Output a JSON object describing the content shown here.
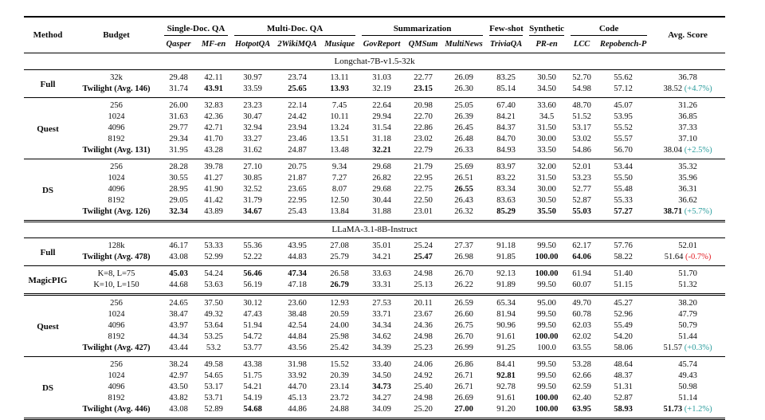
{
  "table": {
    "header": {
      "method": "Method",
      "budget": "Budget",
      "avg_score": "Avg. Score",
      "groups": [
        {
          "label": "Single-Doc. QA",
          "cols": [
            "Qasper",
            "MF-en"
          ]
        },
        {
          "label": "Multi-Doc. QA",
          "cols": [
            "HotpotQA",
            "2WikiMQA",
            "Musique"
          ]
        },
        {
          "label": "Summarization",
          "cols": [
            "GovReport",
            "QMSum",
            "MultiNews"
          ]
        },
        {
          "label": "Few-shot",
          "cols": [
            "TriviaQA"
          ]
        },
        {
          "label": "Synthetic",
          "cols": [
            "PR-en"
          ]
        },
        {
          "label": "Code",
          "cols": [
            "LCC",
            "Repobench-P"
          ]
        }
      ]
    },
    "colors": {
      "positive_delta": "#2b9d9d",
      "negative_delta": "#e31b23"
    },
    "sections": [
      {
        "title": "Longchat-7B-v1.5-32k",
        "groups": [
          {
            "method": "Full",
            "rows": [
              {
                "budget": "32k",
                "values": [
                  "29.48",
                  "42.11",
                  "30.97",
                  "23.74",
                  "13.11",
                  "31.03",
                  "22.77",
                  "26.09",
                  "83.25",
                  "30.50",
                  "52.70",
                  "55.62"
                ],
                "avg": "36.78",
                "delta": "",
                "delta_type": ""
              },
              {
                "budget": "Twilight (Avg. 146)",
                "budget_bold": true,
                "values": [
                  "31.74",
                  "43.91",
                  "33.59",
                  "25.65",
                  "13.93",
                  "32.19",
                  "23.15",
                  "26.30",
                  "85.14",
                  "34.50",
                  "54.98",
                  "57.12"
                ],
                "bold": [
                  1,
                  3,
                  4,
                  6
                ],
                "avg": "38.52",
                "delta": "(+4.7%)",
                "delta_type": "pos"
              }
            ]
          },
          {
            "method": "Quest",
            "rows": [
              {
                "budget": "256",
                "values": [
                  "26.00",
                  "32.83",
                  "23.23",
                  "22.14",
                  "7.45",
                  "22.64",
                  "20.98",
                  "25.05",
                  "67.40",
                  "33.60",
                  "48.70",
                  "45.07"
                ],
                "avg": "31.26",
                "delta": "",
                "delta_type": ""
              },
              {
                "budget": "1024",
                "values": [
                  "31.63",
                  "42.36",
                  "30.47",
                  "24.42",
                  "10.11",
                  "29.94",
                  "22.70",
                  "26.39",
                  "84.21",
                  "34.5",
                  "51.52",
                  "53.95"
                ],
                "avg": "36.85",
                "delta": "",
                "delta_type": ""
              },
              {
                "budget": "4096",
                "values": [
                  "29.77",
                  "42.71",
                  "32.94",
                  "23.94",
                  "13.24",
                  "31.54",
                  "22.86",
                  "26.45",
                  "84.37",
                  "31.50",
                  "53.17",
                  "55.52"
                ],
                "avg": "37.33",
                "delta": "",
                "delta_type": ""
              },
              {
                "budget": "8192",
                "values": [
                  "29.34",
                  "41.70",
                  "33.27",
                  "23.46",
                  "13.51",
                  "31.18",
                  "23.02",
                  "26.48",
                  "84.70",
                  "30.00",
                  "53.02",
                  "55.57"
                ],
                "avg": "37.10",
                "delta": "",
                "delta_type": ""
              },
              {
                "budget": "Twilight (Avg. 131)",
                "budget_bold": true,
                "values": [
                  "31.95",
                  "43.28",
                  "31.62",
                  "24.87",
                  "13.48",
                  "32.21",
                  "22.79",
                  "26.33",
                  "84.93",
                  "33.50",
                  "54.86",
                  "56.70"
                ],
                "bold": [
                  5
                ],
                "avg": "38.04",
                "delta": "(+2.5%)",
                "delta_type": "pos"
              }
            ]
          },
          {
            "method": "DS",
            "rows": [
              {
                "budget": "256",
                "values": [
                  "28.28",
                  "39.78",
                  "27.10",
                  "20.75",
                  "9.34",
                  "29.68",
                  "21.79",
                  "25.69",
                  "83.97",
                  "32.00",
                  "52.01",
                  "53.44"
                ],
                "avg": "35.32",
                "delta": "",
                "delta_type": ""
              },
              {
                "budget": "1024",
                "values": [
                  "30.55",
                  "41.27",
                  "30.85",
                  "21.87",
                  "7.27",
                  "26.82",
                  "22.95",
                  "26.51",
                  "83.22",
                  "31.50",
                  "53.23",
                  "55.50"
                ],
                "avg": "35.96",
                "delta": "",
                "delta_type": ""
              },
              {
                "budget": "4096",
                "values": [
                  "28.95",
                  "41.90",
                  "32.52",
                  "23.65",
                  "8.07",
                  "29.68",
                  "22.75",
                  "26.55",
                  "83.34",
                  "30.00",
                  "52.77",
                  "55.48"
                ],
                "bold": [
                  7
                ],
                "avg": "36.31",
                "delta": "",
                "delta_type": ""
              },
              {
                "budget": "8192",
                "values": [
                  "29.05",
                  "41.42",
                  "31.79",
                  "22.95",
                  "12.50",
                  "30.44",
                  "22.50",
                  "26.43",
                  "83.63",
                  "30.50",
                  "52.87",
                  "55.33"
                ],
                "avg": "36.62",
                "delta": "",
                "delta_type": ""
              },
              {
                "budget": "Twilight (Avg. 126)",
                "budget_bold": true,
                "values": [
                  "32.34",
                  "43.89",
                  "34.67",
                  "25.43",
                  "13.84",
                  "31.88",
                  "23.01",
                  "26.32",
                  "85.29",
                  "35.50",
                  "55.03",
                  "57.27"
                ],
                "bold": [
                  0,
                  2,
                  8,
                  9,
                  10,
                  11
                ],
                "avg": "38.71",
                "avg_bold": true,
                "delta": "(+5.7%)",
                "delta_type": "pos"
              }
            ]
          }
        ]
      },
      {
        "title": "LLaMA-3.1-8B-Instruct",
        "rule_above": "double",
        "groups": [
          {
            "method": "Full",
            "rows": [
              {
                "budget": "128k",
                "values": [
                  "46.17",
                  "53.33",
                  "55.36",
                  "43.95",
                  "27.08",
                  "35.01",
                  "25.24",
                  "27.37",
                  "91.18",
                  "99.50",
                  "62.17",
                  "57.76"
                ],
                "avg": "52.01",
                "delta": "",
                "delta_type": ""
              },
              {
                "budget": "Twilight (Avg. 478)",
                "budget_bold": true,
                "values": [
                  "43.08",
                  "52.99",
                  "52.22",
                  "44.83",
                  "25.79",
                  "34.21",
                  "25.47",
                  "26.98",
                  "91.85",
                  "100.00",
                  "64.06",
                  "58.22"
                ],
                "bold": [
                  6,
                  9,
                  10
                ],
                "avg": "51.64",
                "delta": "(-0.7%)",
                "delta_type": "neg"
              }
            ]
          },
          {
            "method": "MagicPIG",
            "rows": [
              {
                "budget": "K=8, L=75",
                "values": [
                  "45.03",
                  "54.24",
                  "56.46",
                  "47.34",
                  "26.58",
                  "33.63",
                  "24.98",
                  "26.70",
                  "92.13",
                  "100.00",
                  "61.94",
                  "51.40"
                ],
                "bold": [
                  0,
                  2,
                  3,
                  9
                ],
                "avg": "51.70",
                "delta": "",
                "delta_type": ""
              },
              {
                "budget": "K=10, L=150",
                "values": [
                  "44.68",
                  "53.63",
                  "56.19",
                  "47.18",
                  "26.79",
                  "33.31",
                  "25.13",
                  "26.22",
                  "91.89",
                  "99.50",
                  "60.07",
                  "51.15"
                ],
                "bold": [
                  4
                ],
                "avg": "51.32",
                "delta": "",
                "delta_type": ""
              }
            ]
          },
          {
            "method": "Quest",
            "rule_above": "double",
            "rows": [
              {
                "budget": "256",
                "values": [
                  "24.65",
                  "37.50",
                  "30.12",
                  "23.60",
                  "12.93",
                  "27.53",
                  "20.11",
                  "26.59",
                  "65.34",
                  "95.00",
                  "49.70",
                  "45.27"
                ],
                "avg": "38.20",
                "delta": "",
                "delta_type": ""
              },
              {
                "budget": "1024",
                "values": [
                  "38.47",
                  "49.32",
                  "47.43",
                  "38.48",
                  "20.59",
                  "33.71",
                  "23.67",
                  "26.60",
                  "81.94",
                  "99.50",
                  "60.78",
                  "52.96"
                ],
                "avg": "47.79",
                "delta": "",
                "delta_type": ""
              },
              {
                "budget": "4096",
                "values": [
                  "43.97",
                  "53.64",
                  "51.94",
                  "42.54",
                  "24.00",
                  "34.34",
                  "24.36",
                  "26.75",
                  "90.96",
                  "99.50",
                  "62.03",
                  "55.49"
                ],
                "avg": "50.79",
                "delta": "",
                "delta_type": ""
              },
              {
                "budget": "8192",
                "values": [
                  "44.34",
                  "53.25",
                  "54.72",
                  "44.84",
                  "25.98",
                  "34.62",
                  "24.98",
                  "26.70",
                  "91.61",
                  "100.00",
                  "62.02",
                  "54.20"
                ],
                "bold": [
                  9
                ],
                "avg": "51.44",
                "delta": "",
                "delta_type": ""
              },
              {
                "budget": "Twilight (Avg. 427)",
                "budget_bold": true,
                "values": [
                  "43.44",
                  "53.2",
                  "53.77",
                  "43.56",
                  "25.42",
                  "34.39",
                  "25.23",
                  "26.99",
                  "91.25",
                  "100.0",
                  "63.55",
                  "58.06"
                ],
                "avg": "51.57",
                "delta": "(+0.3%)",
                "delta_type": "pos"
              }
            ]
          },
          {
            "method": "DS",
            "rows": [
              {
                "budget": "256",
                "values": [
                  "38.24",
                  "49.58",
                  "43.38",
                  "31.98",
                  "15.52",
                  "33.40",
                  "24.06",
                  "26.86",
                  "84.41",
                  "99.50",
                  "53.28",
                  "48.64"
                ],
                "avg": "45.74",
                "delta": "",
                "delta_type": ""
              },
              {
                "budget": "1024",
                "values": [
                  "42.97",
                  "54.65",
                  "51.75",
                  "33.92",
                  "20.39",
                  "34.50",
                  "24.92",
                  "26.71",
                  "92.81",
                  "99.50",
                  "62.66",
                  "48.37"
                ],
                "bold": [
                  8
                ],
                "avg": "49.43",
                "delta": "",
                "delta_type": ""
              },
              {
                "budget": "4096",
                "values": [
                  "43.50",
                  "53.17",
                  "54.21",
                  "44.70",
                  "23.14",
                  "34.73",
                  "25.40",
                  "26.71",
                  "92.78",
                  "99.50",
                  "62.59",
                  "51.31"
                ],
                "bold": [
                  5
                ],
                "avg": "50.98",
                "delta": "",
                "delta_type": ""
              },
              {
                "budget": "8192",
                "values": [
                  "43.82",
                  "53.71",
                  "54.19",
                  "45.13",
                  "23.72",
                  "34.27",
                  "24.98",
                  "26.69",
                  "91.61",
                  "100.00",
                  "62.40",
                  "52.87"
                ],
                "bold": [
                  9
                ],
                "avg": "51.14",
                "delta": "",
                "delta_type": ""
              },
              {
                "budget": "Twilight (Avg. 446)",
                "budget_bold": true,
                "values": [
                  "43.08",
                  "52.89",
                  "54.68",
                  "44.86",
                  "24.88",
                  "34.09",
                  "25.20",
                  "27.00",
                  "91.20",
                  "100.00",
                  "63.95",
                  "58.93"
                ],
                "bold": [
                  2,
                  7,
                  9,
                  10,
                  11
                ],
                "avg": "51.73",
                "avg_bold": true,
                "delta": "(+1.2%)",
                "delta_type": "pos"
              }
            ]
          }
        ]
      }
    ]
  }
}
